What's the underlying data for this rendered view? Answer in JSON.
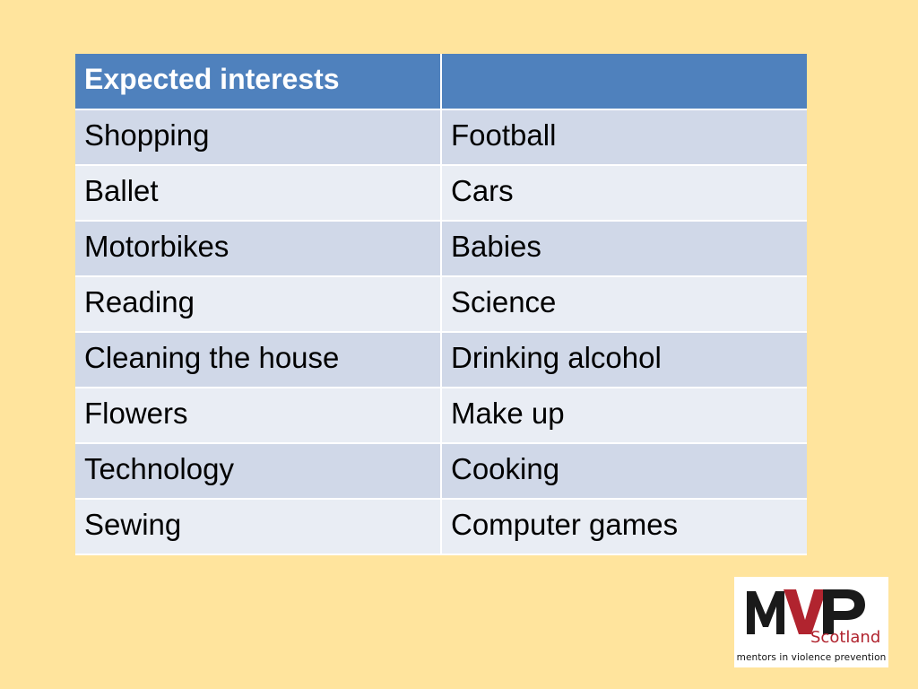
{
  "table": {
    "header": [
      "Expected interests",
      ""
    ],
    "rows": [
      [
        "Shopping",
        "Football"
      ],
      [
        "Ballet",
        "Cars"
      ],
      [
        "Motorbikes",
        "Babies"
      ],
      [
        "Reading",
        "Science"
      ],
      [
        "Cleaning the house",
        "Drinking alcohol"
      ],
      [
        "Flowers",
        "Make up"
      ],
      [
        "Technology",
        "Cooking"
      ],
      [
        "Sewing",
        "Computer games"
      ]
    ]
  },
  "logo": {
    "brand": "MVP",
    "subtitle": "Scotland",
    "tagline": "mentors in violence prevention",
    "colors": {
      "dark": "#1a1a1a",
      "red": "#b1242f"
    }
  },
  "colors": {
    "background": "#ffe49d",
    "header": "#4f81bd",
    "row_odd": "#d0d8e8",
    "row_even": "#e9edf4"
  }
}
